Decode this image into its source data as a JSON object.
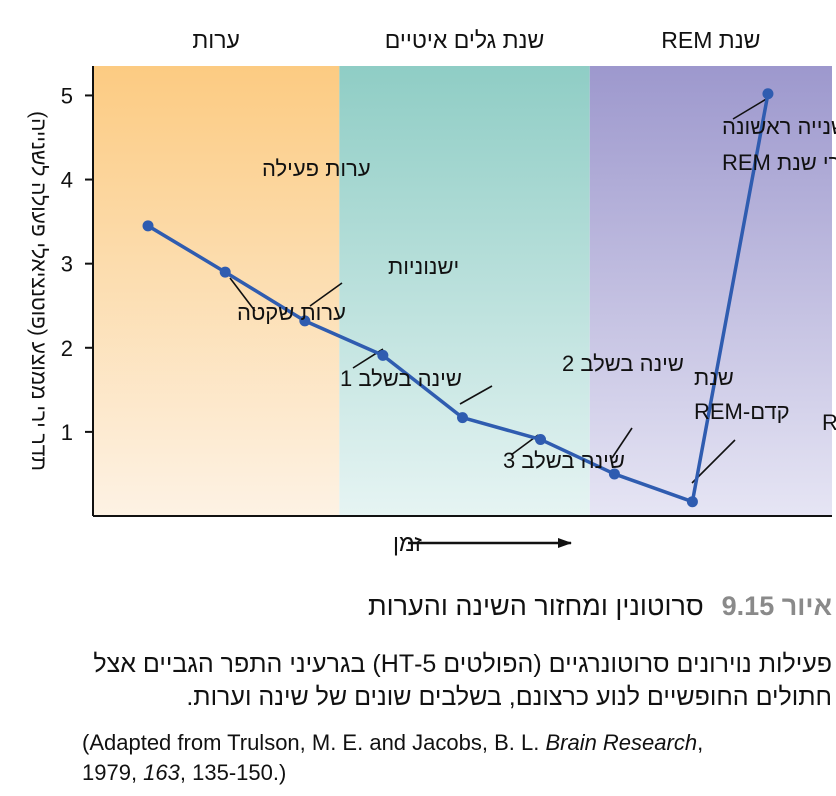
{
  "chart_data": {
    "type": "line",
    "ylabel": "תדר ירי ממוצע (פוטנציאלי פעולה לשנייה)",
    "xlabel": "זמן",
    "ylim": [
      0,
      5.35
    ],
    "yticks": [
      1,
      2,
      3,
      4,
      5
    ],
    "grid": false,
    "regions": [
      {
        "label": "ערות",
        "x_start": 0,
        "x_end": 3.0,
        "color_top": "#fccb82",
        "color_bottom": "#fdf2e4"
      },
      {
        "label": "שנת גלים איטיים",
        "x_start": 3.0,
        "x_end": 6.05,
        "color_top": "#8fcdc5",
        "color_bottom": "#e6f4f3"
      },
      {
        "label": "שנת REM",
        "x_start": 6.05,
        "x_end": 9.0,
        "color_top": "#9d98cd",
        "color_bottom": "#e6e5f4"
      }
    ],
    "line_color": "#2f5cb0",
    "series": [
      {
        "points": [
          {
            "x": 0.67,
            "y": 3.45
          },
          {
            "x": 1.61,
            "y": 2.9
          },
          {
            "x": 2.58,
            "y": 2.32
          },
          {
            "x": 3.53,
            "y": 1.91
          },
          {
            "x": 4.5,
            "y": 1.17
          },
          {
            "x": 5.45,
            "y": 0.91
          },
          {
            "x": 6.35,
            "y": 0.5
          },
          {
            "x": 7.3,
            "y": 0.17
          },
          {
            "x": 8.22,
            "y": 5.02
          }
        ]
      }
    ],
    "annotations": [
      {
        "lines": [
          "ערות פעילה"
        ],
        "point": 0
      },
      {
        "lines": [
          "ערות שקטה"
        ],
        "point": 1
      },
      {
        "lines": [
          "ישנוניות"
        ],
        "point": 2
      },
      {
        "lines": [
          "שינה בשלב 1"
        ],
        "point": 3
      },
      {
        "lines": [
          "שינה בשלב 2"
        ],
        "point": 4
      },
      {
        "lines": [
          "שינה בשלב 3"
        ],
        "point": 5
      },
      {
        "lines": [
          "שנת",
          "קדם-REM"
        ],
        "point": 6
      },
      {
        "lines": [
          "שנת REM"
        ],
        "point": 7
      },
      {
        "lines": [
          "שנייה ראשונה",
          "אחרי שנת REM"
        ],
        "point": 8
      }
    ]
  },
  "caption": {
    "figure_label": "איור 9.15",
    "title": "סרוטונין ומחזור השינה והערות",
    "body": "פעילות נוירונים סרוטונרגיים (הפולטים 5-HT) בגרעיני התפר הגביים אצל חתולים החופשיים לנוע כרצונם, בשלבים שונים של שינה וערות.",
    "source_1": "(Adapted from Trulson, M. E. and Jacobs, B. L. ",
    "source_journal": "Brain Research",
    "source_2": ",",
    "source_3": "1979, ",
    "source_volume": "163",
    "source_4": ", 135-150.)"
  }
}
